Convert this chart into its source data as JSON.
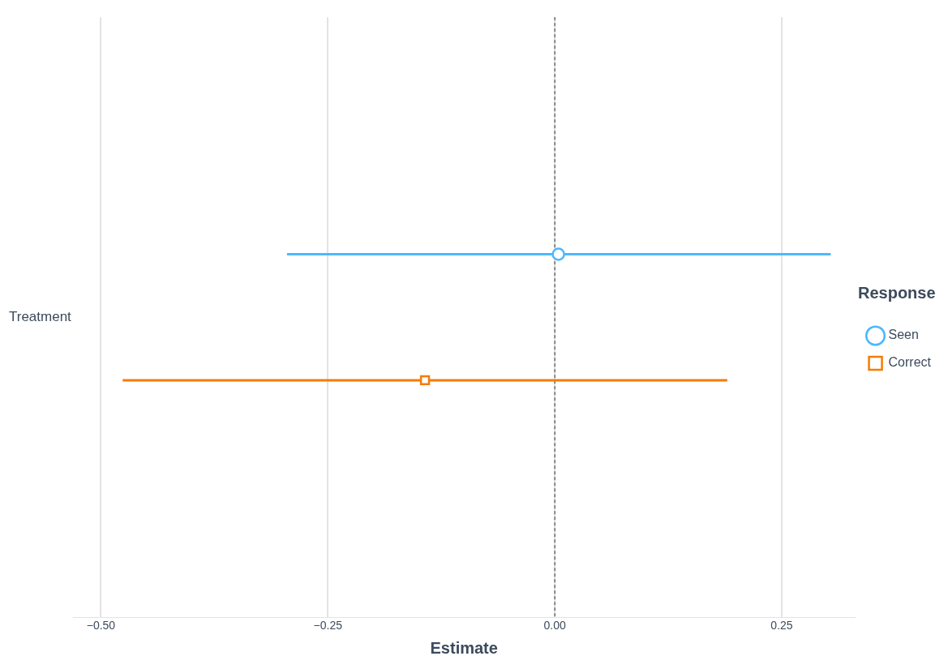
{
  "chart_data": {
    "type": "scatter",
    "orientation": "horizontal",
    "categories": [
      "Treatment"
    ],
    "series": [
      {
        "name": "Seen",
        "color": "#4db8ff",
        "marker": "circle",
        "values": [
          0.004
        ],
        "errors": [
          [
            -0.295,
            0.304
          ]
        ]
      },
      {
        "name": "Correct",
        "color": "#f57c00",
        "marker": "square",
        "values": [
          -0.143
        ],
        "errors": [
          [
            -0.476,
            0.19
          ]
        ]
      }
    ],
    "xlim": [
      -0.53,
      0.33
    ],
    "xticks": [
      {
        "value": -0.5,
        "label": "−0.50"
      },
      {
        "value": -0.25,
        "label": "−0.25"
      },
      {
        "value": 0,
        "label": "0.00"
      },
      {
        "value": 0.25,
        "label": "0.25"
      }
    ],
    "xlabel": "Estimate",
    "legend": "right",
    "legend_title": "Response",
    "grid": "x",
    "ref_lines": [
      {
        "axis": "x",
        "value": 0,
        "color": "#333333",
        "line_style": "dashed"
      }
    ]
  }
}
